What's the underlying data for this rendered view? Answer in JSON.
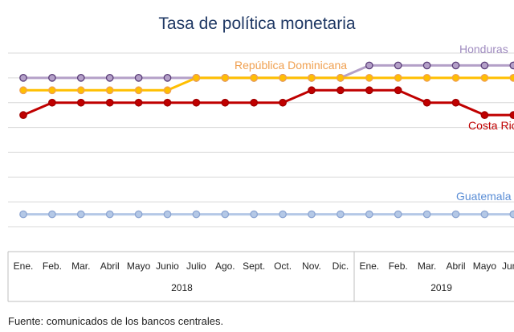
{
  "chart_data": {
    "type": "line",
    "title": "Tasa de política monetaria",
    "categories": [
      "Ene.",
      "Feb.",
      "Mar.",
      "Abril",
      "Mayo",
      "Junio",
      "Julio",
      "Ago.",
      "Sept.",
      "Oct.",
      "Nov.",
      "Dic.",
      "Ene.",
      "Feb.",
      "Mar.",
      "Abril",
      "Mayo",
      "Junio"
    ],
    "year_groups": [
      {
        "label": "2018",
        "start": 0,
        "end": 11
      },
      {
        "label": "2019",
        "start": 12,
        "end": 17
      }
    ],
    "series": [
      {
        "name": "Honduras",
        "color": "#b4a0c8",
        "marker_edge": "#5a3d78",
        "values": [
          5.5,
          5.5,
          5.5,
          5.5,
          5.5,
          5.5,
          5.5,
          5.5,
          5.5,
          5.5,
          5.5,
          5.5,
          5.75,
          5.75,
          5.75,
          5.75,
          5.75,
          5.75
        ]
      },
      {
        "name": "República Dominicana",
        "color": "#ffbf00",
        "marker_edge": "#f0a050",
        "values": [
          5.25,
          5.25,
          5.25,
          5.25,
          5.25,
          5.25,
          5.5,
          5.5,
          5.5,
          5.5,
          5.5,
          5.5,
          5.5,
          5.5,
          5.5,
          5.5,
          5.5,
          5.5
        ]
      },
      {
        "name": "Costa Rica",
        "color": "#c00000",
        "marker_edge": "#a00000",
        "values": [
          4.75,
          5.0,
          5.0,
          5.0,
          5.0,
          5.0,
          5.0,
          5.0,
          5.0,
          5.0,
          5.25,
          5.25,
          5.25,
          5.25,
          5.0,
          5.0,
          4.75,
          4.75
        ]
      },
      {
        "name": "Guatemala",
        "color": "#b4c8e6",
        "marker_edge": "#8ca5d2",
        "values": [
          2.75,
          2.75,
          2.75,
          2.75,
          2.75,
          2.75,
          2.75,
          2.75,
          2.75,
          2.75,
          2.75,
          2.75,
          2.75,
          2.75,
          2.75,
          2.75,
          2.75,
          2.75
        ]
      }
    ],
    "label_colors": {
      "Honduras": "#a08cc0",
      "República Dominicana": "#f0a050",
      "Costa Rica": "#c00000",
      "Guatemala": "#5b8ed6"
    },
    "ylim": [
      2.5,
      6.0
    ],
    "grid": true,
    "source": "Fuente: comunicados de los bancos centrales."
  }
}
